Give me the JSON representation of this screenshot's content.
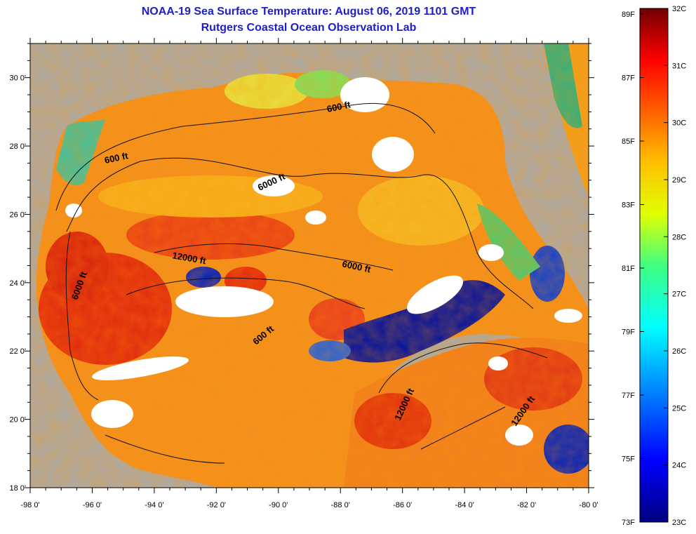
{
  "title": "NOAA-19 Sea Surface Temperature:  August 06, 2019 1101 GMT",
  "subtitle": "Rutgers Coastal Ocean Observation Lab",
  "latitude_labels": [
    "30 0'",
    "28 0'",
    "26 0'",
    "24 0'",
    "22 0'",
    "20 0'",
    "18 0'"
  ],
  "latitudes": [
    30,
    28,
    26,
    24,
    22,
    20,
    18
  ],
  "longitude_labels": [
    "-98 0'",
    "-96 0'",
    "-94 0'",
    "-92 0'",
    "-90 0'",
    "-88 0'",
    "-86 0'",
    "-84 0'",
    "-82 0'",
    "-80 0'"
  ],
  "longitudes": [
    -98,
    -96,
    -94,
    -92,
    -90,
    -88,
    -86,
    -84,
    -82,
    -80
  ],
  "contour_labels": [
    "600 ft",
    "600 ft",
    "6000 ft",
    "12000 ft",
    "6000 ft",
    "6000 ft",
    "600 ft",
    "12000 ft",
    "12000 ft"
  ],
  "colorbar": {
    "fahrenheit_labels": [
      "89F",
      "87F",
      "85F",
      "83F",
      "81F",
      "79F",
      "77F",
      "75F",
      "73F"
    ],
    "celsius_labels": [
      "32C",
      "31C",
      "30C",
      "29C",
      "28C",
      "27C",
      "26C",
      "25C",
      "24C",
      "23C"
    ]
  },
  "colors": {
    "title": "#1e1ec8",
    "land": "#aaaaaa",
    "cloud": "#ffffff",
    "warm": "#e03010",
    "cold": "#0010a0"
  }
}
